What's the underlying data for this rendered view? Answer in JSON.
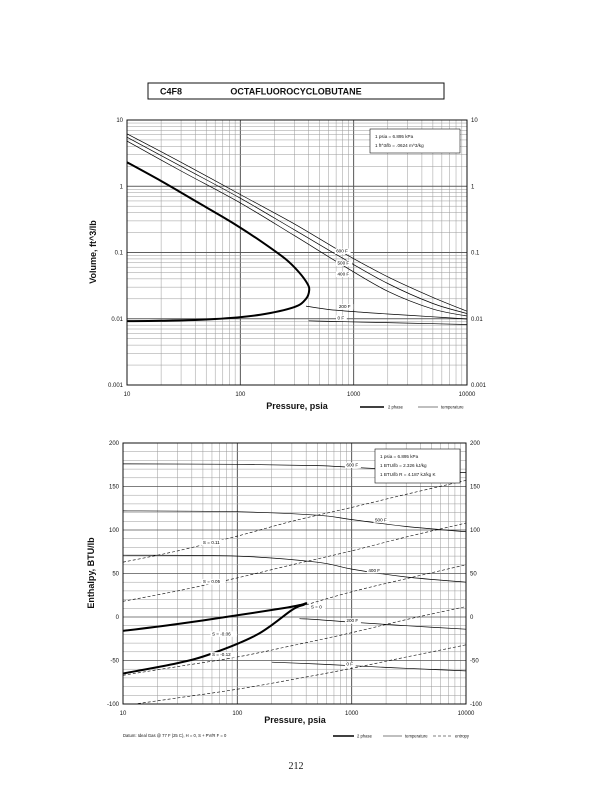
{
  "header": {
    "formula": "C4F8",
    "name": "OCTAFLUOROCYCLOBUTANE"
  },
  "page_number": "212",
  "chart_data": [
    {
      "type": "line",
      "x_scale": "log",
      "y_scale": "log",
      "xlabel": "Pressure,  psia",
      "ylabel": "Volume, ft^3/lb",
      "xlim": [
        10,
        10000
      ],
      "ylim": [
        0.001,
        10
      ],
      "grid": true,
      "x_ticks": [
        "10",
        "100",
        "1000",
        "10000"
      ],
      "y_ticks": [
        "0.001",
        "0.01",
        "0.1",
        "1",
        "10"
      ],
      "notes": [
        "1 psia  =  6.895 kPa",
        "1 ft^3/lb  =  .0624 m^3/kg"
      ],
      "legend": [
        "2 phase",
        "temperature"
      ],
      "legend_position": "bottom-right",
      "series": [
        {
          "name": "2 phase",
          "kind": "2phase",
          "x": [
            10,
            20,
            40,
            80,
            150,
            250,
            330,
            390,
            405,
            380,
            300,
            150,
            60,
            20,
            10
          ],
          "y": [
            2.3,
            1.2,
            0.6,
            0.3,
            0.15,
            0.08,
            0.05,
            0.034,
            0.027,
            0.02,
            0.015,
            0.0115,
            0.0099,
            0.0093,
            0.0092
          ]
        },
        {
          "name": "600 F",
          "kind": "temp",
          "x": [
            10,
            30,
            100,
            300,
            800,
            2000,
            5000,
            10000
          ],
          "y": [
            6.2,
            2.3,
            0.75,
            0.27,
            0.1,
            0.043,
            0.021,
            0.013
          ],
          "label": "600 F",
          "label_at": [
            700,
            0.1
          ]
        },
        {
          "name": "500 F",
          "kind": "temp",
          "x": [
            10,
            30,
            100,
            300,
            800,
            2000,
            5000,
            10000
          ],
          "y": [
            5.5,
            2.0,
            0.66,
            0.22,
            0.082,
            0.034,
            0.017,
            0.012
          ],
          "label": "500 F",
          "label_at": [
            720,
            0.066
          ]
        },
        {
          "name": "400 F",
          "kind": "temp",
          "x": [
            10,
            30,
            100,
            300,
            800,
            2000,
            5000,
            10000
          ],
          "y": [
            4.8,
            1.7,
            0.56,
            0.18,
            0.064,
            0.026,
            0.014,
            0.011
          ],
          "label": "400 F",
          "label_at": [
            720,
            0.045
          ]
        },
        {
          "name": "200 F",
          "kind": "temp",
          "x": [
            380,
            600,
            1000,
            2000,
            5000,
            10000
          ],
          "y": [
            0.0155,
            0.0138,
            0.0128,
            0.0118,
            0.0107,
            0.0099
          ],
          "label": "200 F",
          "label_at": [
            740,
            0.0145
          ]
        },
        {
          "name": "0 F",
          "kind": "temp",
          "x": [
            400,
            700,
            1200,
            3000,
            10000
          ],
          "y": [
            0.0093,
            0.0091,
            0.0089,
            0.0086,
            0.0082
          ],
          "label": "0 F",
          "label_at": [
            720,
            0.0098
          ]
        }
      ]
    },
    {
      "type": "line",
      "x_scale": "log",
      "y_scale": "linear",
      "xlabel": "Pressure,  psia",
      "ylabel": "Enthalpy, BTU/lb",
      "xlim": [
        10,
        10000
      ],
      "ylim": [
        -100,
        200
      ],
      "grid": true,
      "x_ticks": [
        "10",
        "100",
        "1000",
        "10000"
      ],
      "y_ticks": [
        "-100",
        "-50",
        "0",
        "50",
        "100",
        "150",
        "200"
      ],
      "notes": [
        "1 psia  =  6.895 kPa",
        "1 BTU/lb  =  2.326 kJ/kg",
        "1 BTU/lb R  =  4.187 kJ/kg K"
      ],
      "legend": [
        "2 phase",
        "temperature",
        "entropy"
      ],
      "legend_position": "bottom-right",
      "datum": "Datum: Ideal Gas @ 77 F (25 C),  H = 0,  S + PV/R F = 0",
      "series": [
        {
          "name": "2 phase",
          "kind": "2phase",
          "x": [
            10,
            30,
            100,
            250,
            360,
            400,
            380,
            300,
            150,
            60,
            30,
            10
          ],
          "y": [
            -16,
            -8,
            2,
            10,
            14,
            16,
            14,
            8,
            -20,
            -42,
            -53,
            -65
          ]
        },
        {
          "name": "600 F",
          "kind": "temp",
          "x": [
            10,
            100,
            500,
            1000,
            3000,
            10000
          ],
          "y": [
            176,
            175.5,
            174,
            172,
            169,
            166
          ],
          "label": "600 F",
          "label_at": [
            900,
            173
          ]
        },
        {
          "name": "500 F",
          "kind": "temp",
          "x": [
            10,
            100,
            500,
            1000,
            3000,
            10000
          ],
          "y": [
            122,
            121,
            117,
            112,
            104,
            98
          ],
          "label": "500 F",
          "label_at": [
            1600,
            110
          ]
        },
        {
          "name": "400 F",
          "kind": "temp",
          "x": [
            10,
            100,
            500,
            1000,
            3000,
            10000
          ],
          "y": [
            71,
            70,
            63,
            55,
            46,
            40
          ],
          "label": "400 F",
          "label_at": [
            1400,
            52
          ]
        },
        {
          "name": "200 F",
          "kind": "temp",
          "x": [
            350,
            500,
            1000,
            3000,
            10000
          ],
          "y": [
            -2,
            -3,
            -6,
            -10,
            -14
          ],
          "label": "200 F",
          "label_at": [
            900,
            -6
          ]
        },
        {
          "name": "0 F",
          "kind": "temp",
          "x": [
            200,
            500,
            1000,
            3000,
            10000
          ],
          "y": [
            -52,
            -54,
            -56,
            -59,
            -62
          ],
          "label": "0 F",
          "label_at": [
            900,
            -56
          ]
        },
        {
          "name": "S = 0.11",
          "kind": "entropy",
          "x": [
            10,
            30,
            100,
            300,
            1000,
            3000,
            10000
          ],
          "y": [
            63,
            76,
            93,
            110,
            126,
            141,
            157
          ],
          "label": "S = 0.11",
          "label_at": [
            50,
            84
          ]
        },
        {
          "name": "S = 0.05",
          "kind": "entropy",
          "x": [
            10,
            30,
            100,
            300,
            1000,
            3000,
            10000
          ],
          "y": [
            18,
            30,
            45,
            60,
            76,
            92,
            108
          ],
          "label": "S = 0.05",
          "label_at": [
            50,
            39
          ]
        },
        {
          "name": "S = 0",
          "kind": "entropy",
          "x": [
            400,
            1000,
            3000,
            10000
          ],
          "y": [
            14,
            29,
            44,
            60
          ],
          "label": "S = 0",
          "label_at": [
            440,
            10
          ]
        },
        {
          "name": "S = -0.06",
          "kind": "entropy",
          "x": [
            10,
            30,
            100,
            300,
            1000,
            3000,
            10000
          ],
          "y": [
            -67,
            -57,
            -46,
            -33,
            -18,
            -3,
            12
          ],
          "label": "S = -0.06",
          "label_at": [
            60,
            -21
          ]
        },
        {
          "name": "S = -0.12",
          "kind": "entropy",
          "x": [
            10,
            30,
            100,
            300,
            1000,
            3000,
            10000
          ],
          "y": [
            -102,
            -93,
            -83,
            -72,
            -59,
            -46,
            -32
          ],
          "label": "S = -0.12",
          "label_at": [
            60,
            -45
          ]
        }
      ]
    }
  ]
}
